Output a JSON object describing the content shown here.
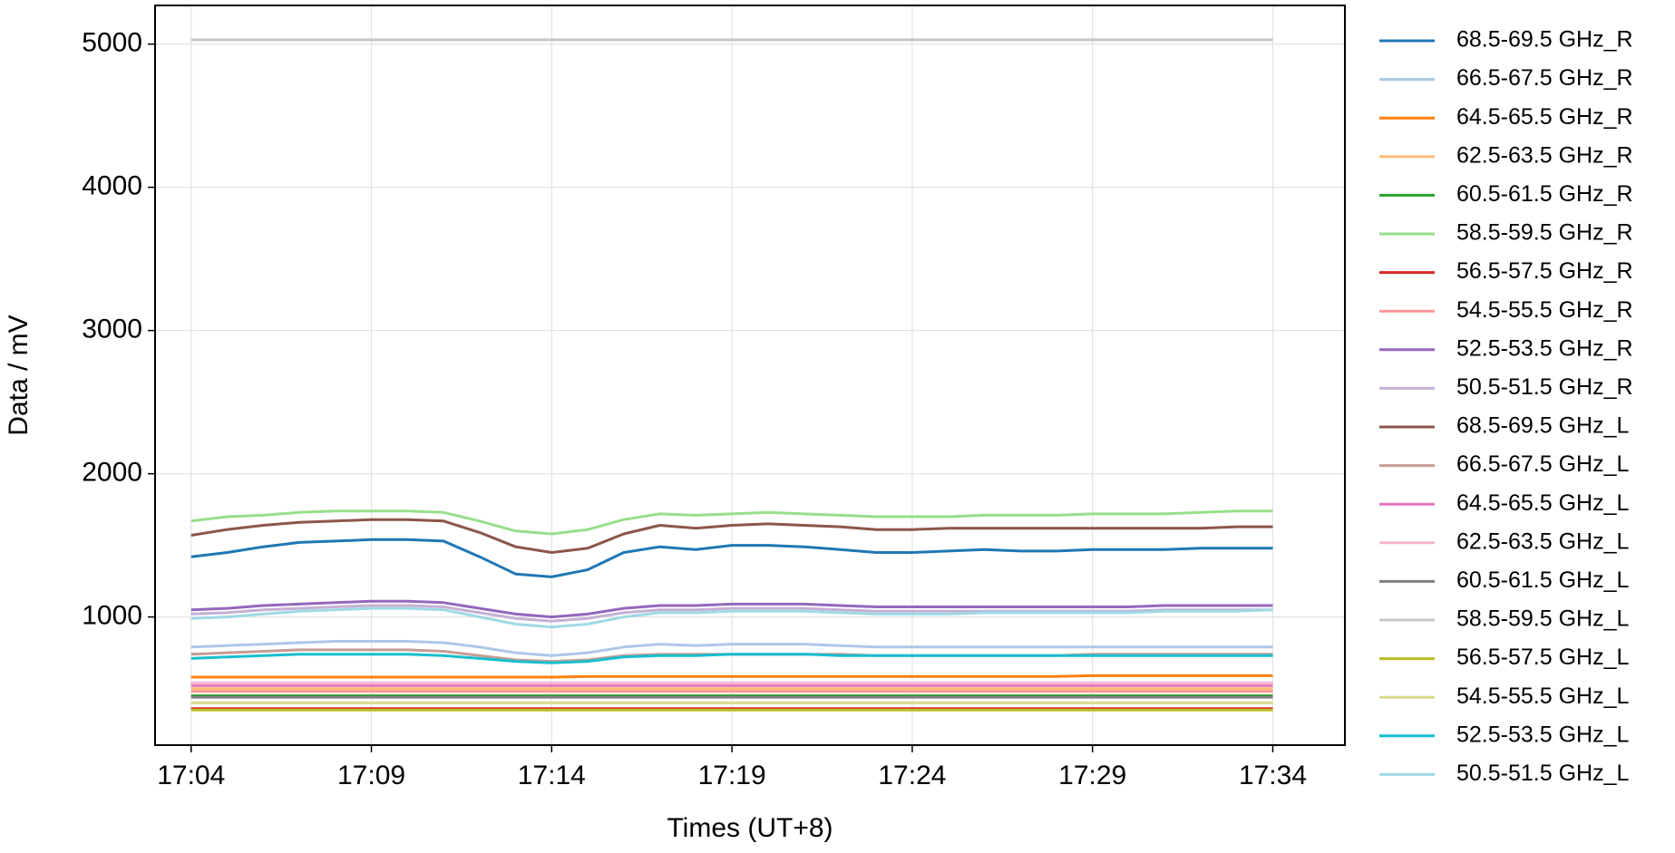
{
  "chart_data": {
    "type": "line",
    "xlabel": "Times (UT+8)",
    "ylabel": "Data / mV",
    "x": [
      "17:04",
      "17:05",
      "17:06",
      "17:07",
      "17:08",
      "17:09",
      "17:10",
      "17:11",
      "17:12",
      "17:13",
      "17:14",
      "17:15",
      "17:16",
      "17:17",
      "17:18",
      "17:19",
      "17:20",
      "17:21",
      "17:22",
      "17:23",
      "17:24",
      "17:25",
      "17:26",
      "17:27",
      "17:28",
      "17:29",
      "17:30",
      "17:31",
      "17:32",
      "17:33",
      "17:34"
    ],
    "xlim": [
      "17:03",
      "17:36"
    ],
    "xticks": [
      "17:04",
      "17:09",
      "17:14",
      "17:19",
      "17:24",
      "17:29",
      "17:34"
    ],
    "ylim": [
      105,
      5270
    ],
    "yticks": [
      1000,
      2000,
      3000,
      4000,
      5000
    ],
    "grid": true,
    "series": [
      {
        "name": "68.5-69.5 GHz_R",
        "color": "#1f77b4",
        "values": [
          1420,
          1450,
          1490,
          1520,
          1530,
          1540,
          1540,
          1530,
          1420,
          1300,
          1280,
          1330,
          1450,
          1490,
          1470,
          1500,
          1500,
          1490,
          1470,
          1450,
          1450,
          1460,
          1470,
          1460,
          1460,
          1470,
          1470,
          1470,
          1480,
          1480,
          1480
        ]
      },
      {
        "name": "66.5-67.5 GHz_R",
        "color": "#aec7e8",
        "values": [
          790,
          800,
          810,
          820,
          830,
          830,
          830,
          820,
          790,
          750,
          730,
          750,
          790,
          810,
          800,
          810,
          810,
          810,
          800,
          790,
          790,
          790,
          790,
          790,
          790,
          790,
          790,
          790,
          790,
          790,
          790
        ]
      },
      {
        "name": "64.5-65.5 GHz_R",
        "color": "#ff7f0e",
        "values": [
          580,
          580,
          580,
          580,
          580,
          580,
          580,
          580,
          580,
          580,
          580,
          585,
          585,
          585,
          585,
          585,
          585,
          585,
          585,
          585,
          585,
          585,
          585,
          585,
          585,
          590,
          590,
          590,
          590,
          590,
          590
        ]
      },
      {
        "name": "62.5-63.5 GHz_R",
        "color": "#ffbb78",
        "values": [
          500,
          500,
          500,
          500,
          500,
          500,
          500,
          500,
          500,
          500,
          500,
          500,
          500,
          500,
          500,
          500,
          500,
          500,
          500,
          500,
          500,
          500,
          500,
          500,
          500,
          500,
          500,
          500,
          500,
          500,
          500
        ]
      },
      {
        "name": "60.5-61.5 GHz_R",
        "color": "#2ca02c",
        "values": [
          450,
          450,
          450,
          450,
          450,
          450,
          450,
          450,
          450,
          450,
          450,
          450,
          450,
          450,
          450,
          450,
          450,
          450,
          450,
          450,
          450,
          450,
          450,
          450,
          450,
          450,
          450,
          450,
          450,
          450,
          450
        ]
      },
      {
        "name": "58.5-59.5 GHz_R",
        "color": "#98df8a",
        "values": [
          1670,
          1700,
          1710,
          1730,
          1740,
          1740,
          1740,
          1730,
          1670,
          1600,
          1580,
          1610,
          1680,
          1720,
          1710,
          1720,
          1730,
          1720,
          1710,
          1700,
          1700,
          1700,
          1710,
          1710,
          1710,
          1720,
          1720,
          1720,
          1730,
          1740,
          1740
        ]
      },
      {
        "name": "56.5-57.5 GHz_R",
        "color": "#d62728",
        "values": [
          360,
          360,
          360,
          360,
          360,
          360,
          360,
          360,
          360,
          360,
          360,
          360,
          360,
          360,
          360,
          360,
          360,
          360,
          360,
          360,
          360,
          360,
          360,
          360,
          360,
          360,
          360,
          360,
          360,
          360,
          360
        ]
      },
      {
        "name": "54.5-55.5 GHz_R",
        "color": "#ff9896",
        "values": [
          480,
          480,
          480,
          480,
          480,
          480,
          480,
          480,
          480,
          480,
          480,
          480,
          480,
          480,
          480,
          480,
          480,
          480,
          480,
          480,
          480,
          480,
          480,
          480,
          480,
          480,
          480,
          480,
          480,
          480,
          480
        ]
      },
      {
        "name": "52.5-53.5 GHz_R",
        "color": "#9467bd",
        "values": [
          1050,
          1060,
          1080,
          1090,
          1100,
          1110,
          1110,
          1100,
          1060,
          1020,
          1000,
          1020,
          1060,
          1080,
          1080,
          1090,
          1090,
          1090,
          1080,
          1070,
          1070,
          1070,
          1070,
          1070,
          1070,
          1070,
          1070,
          1080,
          1080,
          1080,
          1080
        ]
      },
      {
        "name": "50.5-51.5 GHz_R",
        "color": "#c5b0d5",
        "values": [
          1020,
          1030,
          1050,
          1060,
          1070,
          1080,
          1080,
          1070,
          1030,
          990,
          970,
          990,
          1030,
          1050,
          1050,
          1060,
          1060,
          1060,
          1050,
          1040,
          1040,
          1040,
          1040,
          1040,
          1040,
          1040,
          1040,
          1050,
          1050,
          1050,
          1050
        ]
      },
      {
        "name": "68.5-69.5 GHz_L",
        "color": "#8c564b",
        "values": [
          1570,
          1610,
          1640,
          1660,
          1670,
          1680,
          1680,
          1670,
          1590,
          1490,
          1450,
          1480,
          1580,
          1640,
          1620,
          1640,
          1650,
          1640,
          1630,
          1610,
          1610,
          1620,
          1620,
          1620,
          1620,
          1620,
          1620,
          1620,
          1620,
          1630,
          1630
        ]
      },
      {
        "name": "66.5-67.5 GHz_L",
        "color": "#c49c94",
        "values": [
          740,
          750,
          760,
          770,
          770,
          770,
          770,
          760,
          730,
          700,
          690,
          700,
          730,
          740,
          740,
          740,
          740,
          740,
          740,
          730,
          730,
          730,
          730,
          730,
          730,
          740,
          740,
          740,
          740,
          740,
          740
        ]
      },
      {
        "name": "64.5-65.5 GHz_L",
        "color": "#e377c2",
        "values": [
          520,
          520,
          520,
          520,
          520,
          520,
          520,
          520,
          520,
          520,
          520,
          520,
          520,
          520,
          520,
          520,
          520,
          520,
          520,
          520,
          520,
          520,
          520,
          520,
          520,
          520,
          520,
          520,
          520,
          520,
          520
        ]
      },
      {
        "name": "62.5-63.5 GHz_L",
        "color": "#f7b6d2",
        "values": [
          540,
          540,
          540,
          540,
          540,
          540,
          540,
          540,
          540,
          540,
          540,
          540,
          540,
          540,
          540,
          540,
          540,
          540,
          540,
          540,
          540,
          540,
          540,
          540,
          540,
          540,
          540,
          540,
          540,
          540,
          540
        ]
      },
      {
        "name": "60.5-61.5 GHz_L",
        "color": "#7f7f7f",
        "values": [
          440,
          440,
          440,
          440,
          440,
          440,
          440,
          440,
          440,
          440,
          440,
          440,
          440,
          440,
          440,
          440,
          440,
          440,
          440,
          440,
          440,
          440,
          440,
          440,
          440,
          440,
          440,
          440,
          440,
          440,
          440
        ]
      },
      {
        "name": "58.5-59.5 GHz_L",
        "color": "#c7c7c7",
        "values": [
          5030,
          5030,
          5030,
          5030,
          5030,
          5030,
          5030,
          5030,
          5030,
          5030,
          5030,
          5030,
          5030,
          5030,
          5030,
          5030,
          5030,
          5030,
          5030,
          5030,
          5030,
          5030,
          5030,
          5030,
          5030,
          5030,
          5030,
          5030,
          5030,
          5030,
          5030
        ]
      },
      {
        "name": "56.5-57.5 GHz_L",
        "color": "#bcbd22",
        "values": [
          350,
          350,
          350,
          350,
          350,
          350,
          350,
          350,
          350,
          350,
          350,
          350,
          350,
          350,
          350,
          350,
          350,
          350,
          350,
          350,
          350,
          350,
          350,
          350,
          350,
          350,
          350,
          350,
          350,
          350,
          350
        ]
      },
      {
        "name": "54.5-55.5 GHz_L",
        "color": "#dbdb8d",
        "values": [
          400,
          400,
          400,
          400,
          400,
          400,
          400,
          400,
          400,
          400,
          400,
          400,
          400,
          400,
          400,
          400,
          400,
          400,
          400,
          400,
          400,
          400,
          400,
          400,
          400,
          400,
          400,
          400,
          400,
          400,
          400
        ]
      },
      {
        "name": "52.5-53.5 GHz_L",
        "color": "#17becf",
        "values": [
          710,
          720,
          730,
          740,
          740,
          740,
          740,
          730,
          710,
          690,
          680,
          690,
          720,
          730,
          730,
          740,
          740,
          740,
          730,
          730,
          730,
          730,
          730,
          730,
          730,
          730,
          730,
          730,
          730,
          730,
          730
        ]
      },
      {
        "name": "50.5-51.5 GHz_L",
        "color": "#9edae5",
        "values": [
          990,
          1000,
          1020,
          1040,
          1050,
          1060,
          1060,
          1050,
          1000,
          950,
          930,
          950,
          1000,
          1030,
          1030,
          1040,
          1040,
          1040,
          1030,
          1020,
          1020,
          1020,
          1030,
          1030,
          1030,
          1030,
          1030,
          1040,
          1040,
          1040,
          1050
        ]
      }
    ]
  }
}
